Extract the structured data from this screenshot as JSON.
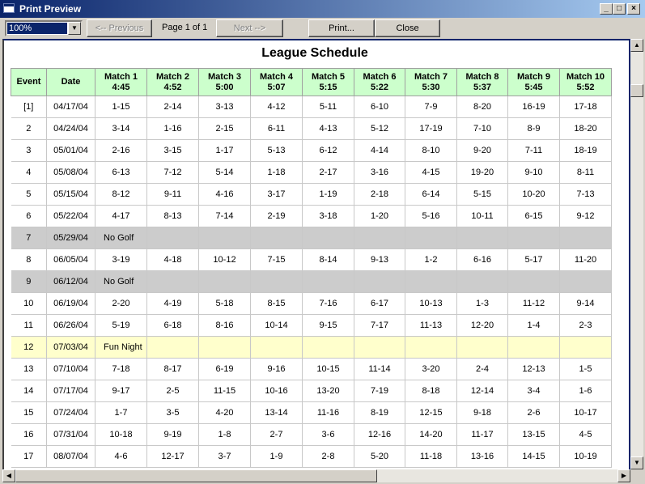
{
  "window": {
    "title": "Print Preview"
  },
  "toolbar": {
    "zoom_value": "100%",
    "prev_label": "<-- Previous",
    "page_label": "Page 1 of 1",
    "next_label": "Next -->",
    "print_label": "Print...",
    "close_label": "Close"
  },
  "report": {
    "title": "League Schedule",
    "headers": [
      {
        "line1": "Event",
        "line2": ""
      },
      {
        "line1": "Date",
        "line2": ""
      },
      {
        "line1": "Match 1",
        "line2": "4:45"
      },
      {
        "line1": "Match 2",
        "line2": "4:52"
      },
      {
        "line1": "Match 3",
        "line2": "5:00"
      },
      {
        "line1": "Match 4",
        "line2": "5:07"
      },
      {
        "line1": "Match 5",
        "line2": "5:15"
      },
      {
        "line1": "Match 6",
        "line2": "5:22"
      },
      {
        "line1": "Match 7",
        "line2": "5:30"
      },
      {
        "line1": "Match 8",
        "line2": "5:37"
      },
      {
        "line1": "Match 9",
        "line2": "5:45"
      },
      {
        "line1": "Match 10",
        "line2": "5:52"
      }
    ],
    "rows": [
      {
        "event": "[1]",
        "date": "04/17/04",
        "matches": [
          "1-15",
          "2-14",
          "3-13",
          "4-12",
          "5-11",
          "6-10",
          "7-9",
          "8-20",
          "16-19",
          "17-18"
        ]
      },
      {
        "event": "2",
        "date": "04/24/04",
        "matches": [
          "3-14",
          "1-16",
          "2-15",
          "6-11",
          "4-13",
          "5-12",
          "17-19",
          "7-10",
          "8-9",
          "18-20"
        ]
      },
      {
        "event": "3",
        "date": "05/01/04",
        "matches": [
          "2-16",
          "3-15",
          "1-17",
          "5-13",
          "6-12",
          "4-14",
          "8-10",
          "9-20",
          "7-11",
          "18-19"
        ]
      },
      {
        "event": "4",
        "date": "05/08/04",
        "matches": [
          "6-13",
          "7-12",
          "5-14",
          "1-18",
          "2-17",
          "3-16",
          "4-15",
          "19-20",
          "9-10",
          "8-11"
        ]
      },
      {
        "event": "5",
        "date": "05/15/04",
        "matches": [
          "8-12",
          "9-11",
          "4-16",
          "3-17",
          "1-19",
          "2-18",
          "6-14",
          "5-15",
          "10-20",
          "7-13"
        ]
      },
      {
        "event": "6",
        "date": "05/22/04",
        "matches": [
          "4-17",
          "8-13",
          "7-14",
          "2-19",
          "3-18",
          "1-20",
          "5-16",
          "10-11",
          "6-15",
          "9-12"
        ]
      },
      {
        "event": "7",
        "date": "05/29/04",
        "note": "No Golf",
        "kind": "off"
      },
      {
        "event": "8",
        "date": "06/05/04",
        "matches": [
          "3-19",
          "4-18",
          "10-12",
          "7-15",
          "8-14",
          "9-13",
          "1-2",
          "6-16",
          "5-17",
          "11-20"
        ]
      },
      {
        "event": "9",
        "date": "06/12/04",
        "note": "No Golf",
        "kind": "off"
      },
      {
        "event": "10",
        "date": "06/19/04",
        "matches": [
          "2-20",
          "4-19",
          "5-18",
          "8-15",
          "7-16",
          "6-17",
          "10-13",
          "1-3",
          "11-12",
          "9-14"
        ]
      },
      {
        "event": "11",
        "date": "06/26/04",
        "matches": [
          "5-19",
          "6-18",
          "8-16",
          "10-14",
          "9-15",
          "7-17",
          "11-13",
          "12-20",
          "1-4",
          "2-3"
        ]
      },
      {
        "event": "12",
        "date": "07/03/04",
        "note": "Fun Night",
        "kind": "fun"
      },
      {
        "event": "13",
        "date": "07/10/04",
        "matches": [
          "7-18",
          "8-17",
          "6-19",
          "9-16",
          "10-15",
          "11-14",
          "3-20",
          "2-4",
          "12-13",
          "1-5"
        ]
      },
      {
        "event": "14",
        "date": "07/17/04",
        "matches": [
          "9-17",
          "2-5",
          "11-15",
          "10-16",
          "13-20",
          "7-19",
          "8-18",
          "12-14",
          "3-4",
          "1-6"
        ]
      },
      {
        "event": "15",
        "date": "07/24/04",
        "matches": [
          "1-7",
          "3-5",
          "4-20",
          "13-14",
          "11-16",
          "8-19",
          "12-15",
          "9-18",
          "2-6",
          "10-17"
        ]
      },
      {
        "event": "16",
        "date": "07/31/04",
        "matches": [
          "10-18",
          "9-19",
          "1-8",
          "2-7",
          "3-6",
          "12-16",
          "14-20",
          "11-17",
          "13-15",
          "4-5"
        ]
      },
      {
        "event": "17",
        "date": "08/07/04",
        "matches": [
          "4-6",
          "12-17",
          "3-7",
          "1-9",
          "2-8",
          "5-20",
          "11-18",
          "13-16",
          "14-15",
          "10-19"
        ]
      }
    ]
  }
}
